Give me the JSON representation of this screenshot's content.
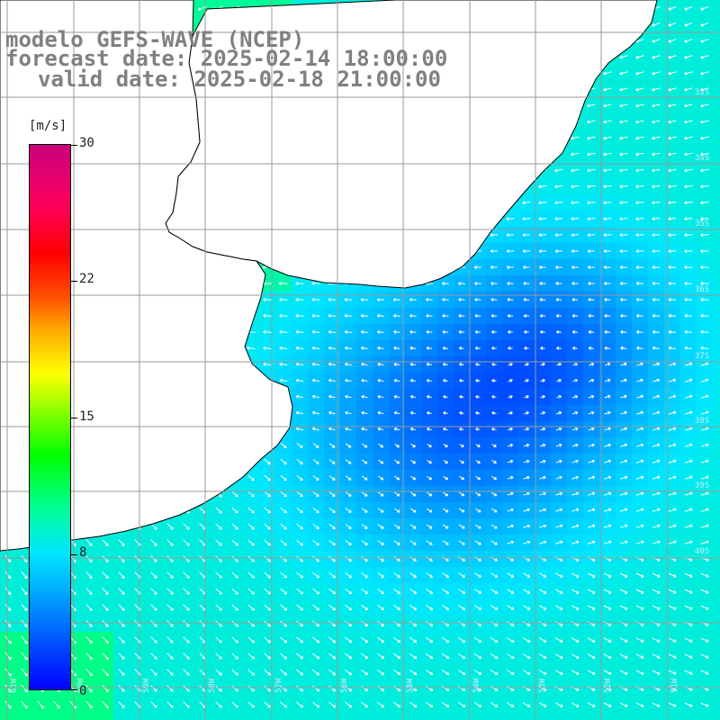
{
  "title": {
    "line1": "modelo GEFS-WAVE (NCEP)",
    "line2": "forecast date: 2025-02-14 18:00:00",
    "line3": "valid date: 2025-02-18 21:00:00"
  },
  "colorbar": {
    "unit": "[m/s]",
    "ticks": [
      "30",
      "22",
      "15",
      "8",
      "0"
    ],
    "tick_values": [
      30,
      22,
      15,
      8,
      0
    ],
    "range": [
      0,
      30
    ]
  },
  "colors": {
    "land": "#ffffff",
    "grid": "#9a9a9a",
    "coast": "#000000",
    "arrow": "#ffffff",
    "title": "#808080"
  },
  "map": {
    "lon_labels": [
      "61W",
      "60W",
      "59W",
      "58W",
      "57W",
      "56W",
      "55W",
      "54W",
      "53W",
      "52W",
      "51W"
    ],
    "lat_labels": [
      "33S",
      "34S",
      "35S",
      "36S",
      "37S",
      "38S",
      "39S",
      "40S"
    ]
  }
}
